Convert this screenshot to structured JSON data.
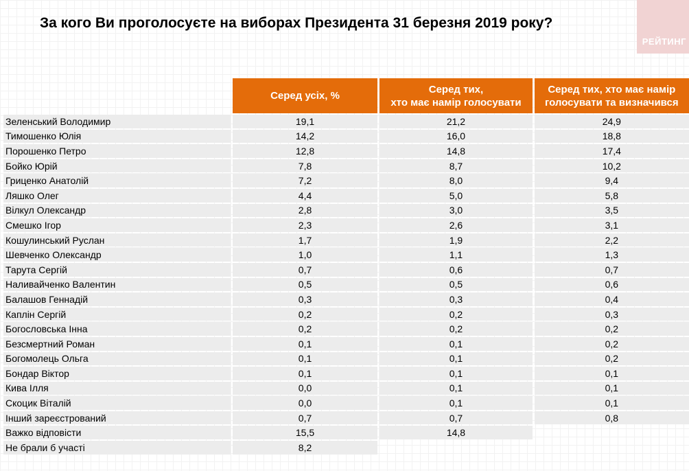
{
  "title": "За кого Ви проголосуєте на виборах Президента 31 березня 2019 року?",
  "logo": "РЕЙТИНГ",
  "headers": [
    "Серед усіх, %",
    "Серед тих,\nхто має намір голосувати",
    "Серед тих, хто має намір\nголосувати та визначився"
  ],
  "rows": [
    {
      "name": "Зеленський Володимир",
      "v": [
        "19,1",
        "21,2",
        "24,9"
      ]
    },
    {
      "name": "Тимошенко Юлія",
      "v": [
        "14,2",
        "16,0",
        "18,8"
      ]
    },
    {
      "name": "Порошенко Петро",
      "v": [
        "12,8",
        "14,8",
        "17,4"
      ]
    },
    {
      "name": "Бойко Юрій",
      "v": [
        "7,8",
        "8,7",
        "10,2"
      ]
    },
    {
      "name": "Гриценко Анатолій",
      "v": [
        "7,2",
        "8,0",
        "9,4"
      ]
    },
    {
      "name": "Ляшко Олег",
      "v": [
        "4,4",
        "5,0",
        "5,8"
      ]
    },
    {
      "name": "Вілкул Олександр",
      "v": [
        "2,8",
        "3,0",
        "3,5"
      ]
    },
    {
      "name": "Смешко Ігор",
      "v": [
        "2,3",
        "2,6",
        "3,1"
      ]
    },
    {
      "name": "Кошулинський Руслан",
      "v": [
        "1,7",
        "1,9",
        "2,2"
      ]
    },
    {
      "name": "Шевченко Олександр",
      "v": [
        "1,0",
        "1,1",
        "1,3"
      ]
    },
    {
      "name": "Тарута Сергій",
      "v": [
        "0,7",
        "0,6",
        "0,7"
      ]
    },
    {
      "name": "Наливайченко Валентин",
      "v": [
        "0,5",
        "0,5",
        "0,6"
      ]
    },
    {
      "name": "Балашов Геннадій",
      "v": [
        "0,3",
        "0,3",
        "0,4"
      ]
    },
    {
      "name": "Каплін Сергій",
      "v": [
        "0,2",
        "0,2",
        "0,3"
      ]
    },
    {
      "name": "Богословська Інна",
      "v": [
        "0,2",
        "0,2",
        "0,2"
      ]
    },
    {
      "name": "Безсмертний Роман",
      "v": [
        "0,1",
        "0,1",
        "0,2"
      ]
    },
    {
      "name": "Богомолець Ольга",
      "v": [
        "0,1",
        "0,1",
        "0,2"
      ]
    },
    {
      "name": "Бондар Віктор",
      "v": [
        "0,1",
        "0,1",
        "0,1"
      ]
    },
    {
      "name": "Кива Ілля",
      "v": [
        "0,0",
        "0,1",
        "0,1"
      ]
    },
    {
      "name": "Скоцик Віталій",
      "v": [
        "0,0",
        "0,1",
        "0,1"
      ]
    },
    {
      "name": "Інший зареєстрований",
      "v": [
        "0,7",
        "0,7",
        "0,8"
      ]
    },
    {
      "name": "Важко відповісти",
      "v": [
        "15,5",
        "14,8"
      ]
    },
    {
      "name": "Не брали б участі",
      "v": [
        "8,2"
      ]
    }
  ]
}
